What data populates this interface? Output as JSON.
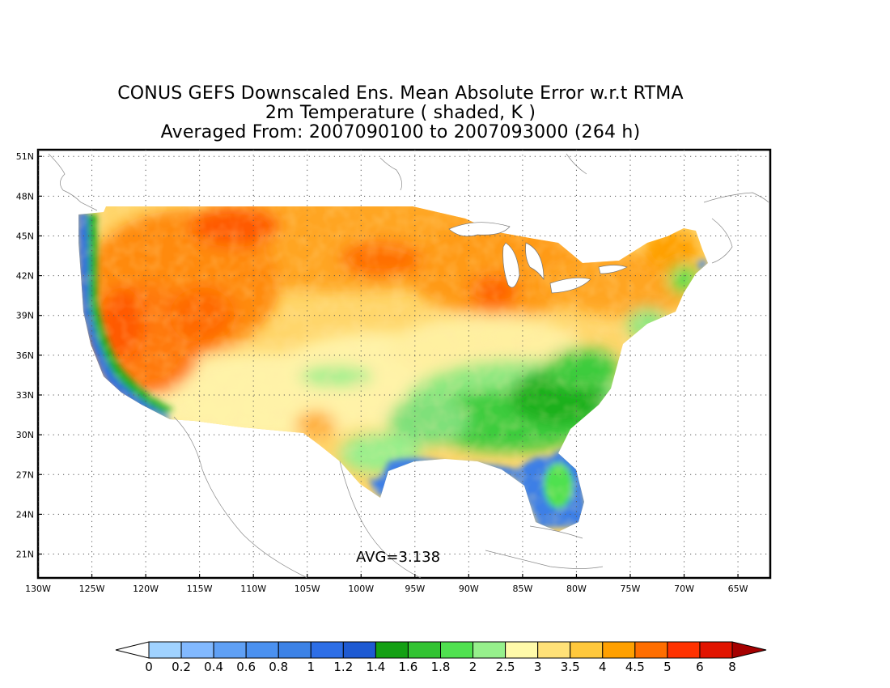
{
  "title": {
    "line1": "CONUS GEFS Downscaled Ens. Mean Absolute Error w.r.t RTMA",
    "line2": "2m Temperature ( shaded, K )",
    "line3": "Averaged From: 2007090100 to 2007093000 (264 h)"
  },
  "map": {
    "lon_range": [
      -130,
      -62
    ],
    "lat_range": [
      19.2,
      51.5
    ],
    "lon_ticks": [
      -130,
      -125,
      -120,
      -115,
      -110,
      -105,
      -100,
      -95,
      -90,
      -85,
      -80,
      -75,
      -70,
      -65
    ],
    "lon_tick_labels": [
      "130W",
      "125W",
      "120W",
      "115W",
      "110W",
      "105W",
      "100W",
      "95W",
      "90W",
      "85W",
      "80W",
      "75W",
      "70W",
      "65W"
    ],
    "lat_ticks": [
      21,
      24,
      27,
      30,
      33,
      36,
      39,
      42,
      45,
      48,
      51
    ],
    "lat_tick_labels": [
      "21N",
      "24N",
      "27N",
      "30N",
      "33N",
      "36N",
      "39N",
      "42N",
      "45N",
      "48N",
      "51N"
    ],
    "grid": "dotted",
    "average_label": "AVG=3.138"
  },
  "colorbar": {
    "labels": [
      "0",
      "0.2",
      "0.4",
      "0.6",
      "0.8",
      "1",
      "1.2",
      "1.4",
      "1.6",
      "1.8",
      "2",
      "2.5",
      "3",
      "3.5",
      "4",
      "4.5",
      "5",
      "6",
      "8"
    ],
    "colors": [
      "#a0d2ff",
      "#82b9ff",
      "#5fa0f5",
      "#4b91f0",
      "#3c82e6",
      "#2d6ee6",
      "#1e5ad2",
      "#14a014",
      "#32c332",
      "#50e150",
      "#96f08c",
      "#fffaaa",
      "#ffe178",
      "#ffc83c",
      "#ffa000",
      "#ff6e00",
      "#ff3200",
      "#e11400",
      "#a50000"
    ],
    "under_color": "#ffffff",
    "over_color": "#a50000"
  }
}
